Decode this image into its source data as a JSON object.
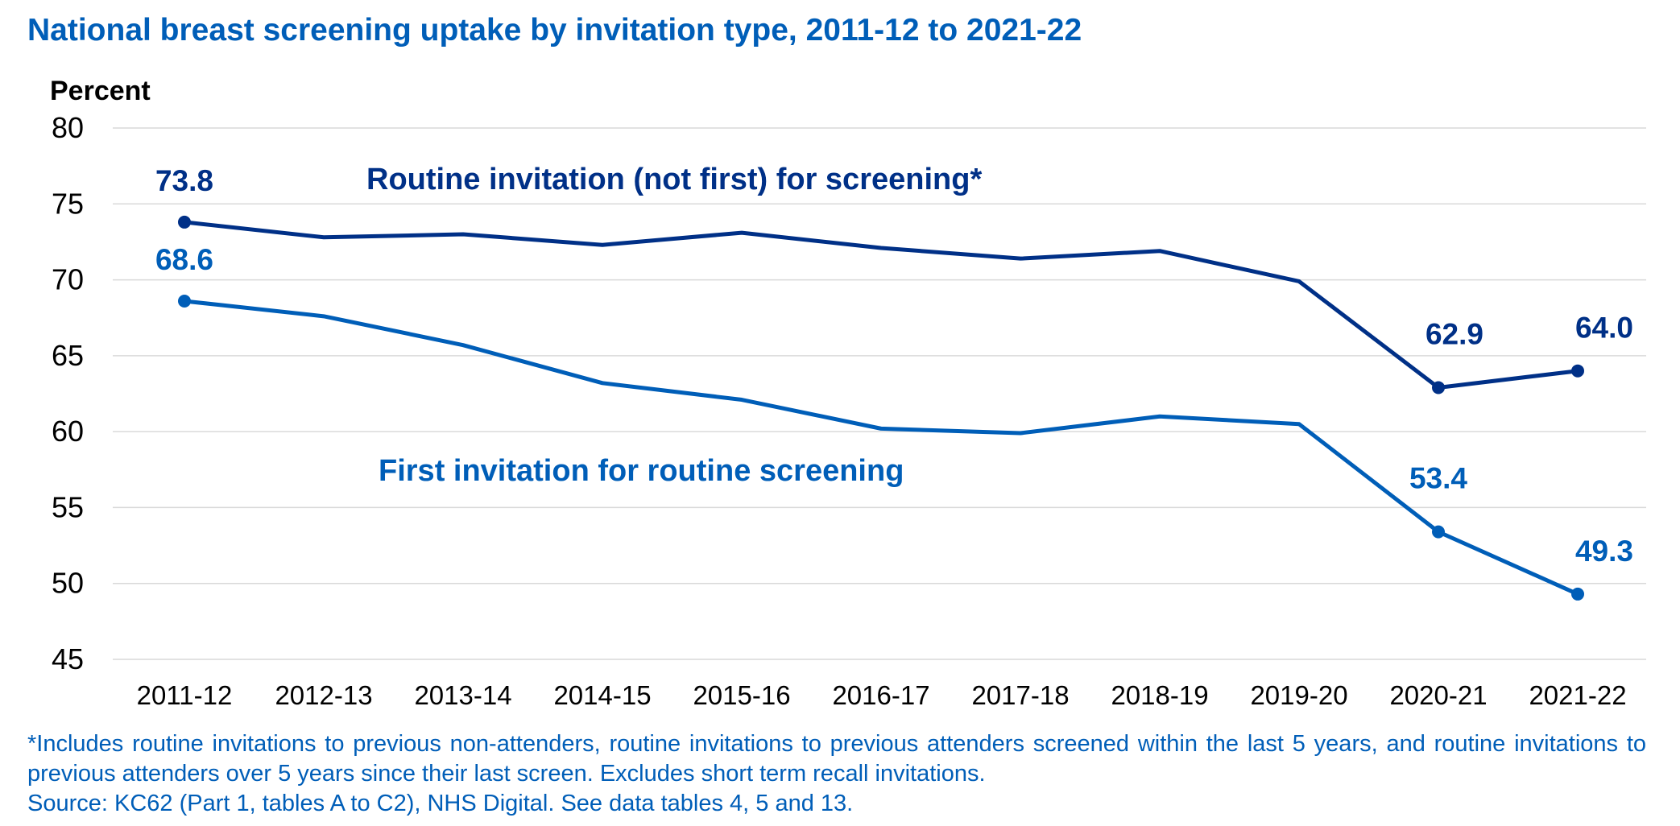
{
  "chart_data": {
    "type": "line",
    "title": "National breast screening uptake by invitation type, 2011-12 to 2021-22",
    "ylabel": "Percent",
    "xlabel": "",
    "ylim": [
      45,
      80
    ],
    "yticks": [
      45,
      50,
      55,
      60,
      65,
      70,
      75,
      80
    ],
    "grid": true,
    "categories": [
      "2011-12",
      "2012-13",
      "2013-14",
      "2014-15",
      "2015-16",
      "2016-17",
      "2017-18",
      "2018-19",
      "2019-20",
      "2020-21",
      "2021-22"
    ],
    "series": [
      {
        "name": "Routine invitation (not first) for screening*",
        "color": "#003087",
        "values": [
          73.8,
          72.8,
          73.0,
          72.3,
          73.1,
          72.1,
          71.4,
          71.9,
          69.9,
          62.9,
          64.0
        ],
        "labels": {
          "0": "73.8",
          "9": "62.9",
          "10": "64.0"
        }
      },
      {
        "name": "First invitation for routine screening",
        "color": "#005EB8",
        "values": [
          68.6,
          67.6,
          65.7,
          63.2,
          62.1,
          60.2,
          59.9,
          61.0,
          60.5,
          53.4,
          49.3
        ],
        "labels": {
          "0": "68.6",
          "9": "53.4",
          "10": "49.3"
        }
      }
    ]
  },
  "footnote": "*Includes routine invitations to previous non-attenders, routine invitations to previous attenders screened within the last 5 years, and routine invitations to previous attenders over 5 years since their last screen. Excludes short term recall invitations.",
  "source": "Source: KC62 (Part 1, tables A to C2), NHS Digital. See data tables 4, 5 and 13."
}
